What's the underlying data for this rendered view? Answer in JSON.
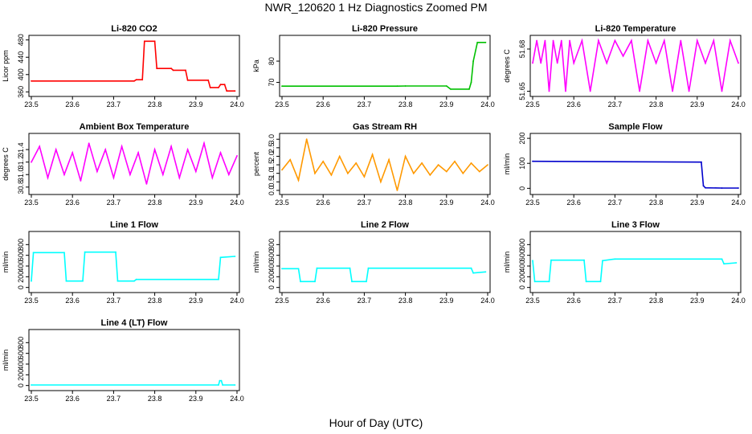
{
  "figure": {
    "title": "NWR_120620  1 Hz Diagnostics Zoomed PM",
    "xlabel": "Hour of Day (UTC)"
  },
  "chart_data": [
    {
      "type": "line",
      "title": "Li-820 CO2",
      "ylabel": "Licor ppm",
      "color": "#ff0000",
      "xlim": [
        23.5,
        24.0
      ],
      "ylim": [
        355,
        485
      ],
      "xticks": [
        "23.5",
        "23.6",
        "23.7",
        "23.8",
        "23.9",
        "24.0"
      ],
      "yticks": [
        "360",
        "400",
        "440",
        "480"
      ],
      "x": [
        23.5,
        23.75,
        23.755,
        23.77,
        23.775,
        23.8,
        23.805,
        23.84,
        23.845,
        23.875,
        23.88,
        23.93,
        23.935,
        23.955,
        23.96,
        23.97,
        23.975,
        23.995
      ],
      "y": [
        385,
        385,
        388,
        388,
        477,
        477,
        414,
        414,
        410,
        410,
        387,
        387,
        370,
        370,
        377,
        377,
        362,
        362
      ]
    },
    {
      "type": "line",
      "title": "Li-820 Pressure",
      "ylabel": "kPa",
      "color": "#00c000",
      "xlim": [
        23.5,
        24.0
      ],
      "ylim": [
        64.5,
        91
      ],
      "xticks": [
        "23.5",
        "23.6",
        "23.7",
        "23.8",
        "23.9",
        "24.0"
      ],
      "yticks": [
        "70",
        "80"
      ],
      "x": [
        23.5,
        23.78,
        23.8,
        23.9,
        23.91,
        23.955,
        23.96,
        23.965,
        23.975,
        23.995
      ],
      "y": [
        68.2,
        68.2,
        68.3,
        68.3,
        66.8,
        66.8,
        70,
        80,
        88.8,
        88.8
      ]
    },
    {
      "type": "line",
      "title": "Li-820 Temperature",
      "ylabel": "degrees C",
      "color": "#ff00ff",
      "xlim": [
        23.5,
        24.0
      ],
      "ylim": [
        51.648,
        51.688
      ],
      "xticks": [
        "23.5",
        "23.6",
        "23.7",
        "23.8",
        "23.9",
        "24.0"
      ],
      "yticks": [
        "51.65",
        "51.68"
      ],
      "x": [
        23.5,
        23.51,
        23.52,
        23.53,
        23.54,
        23.55,
        23.56,
        23.57,
        23.58,
        23.59,
        23.6,
        23.62,
        23.64,
        23.66,
        23.68,
        23.7,
        23.72,
        23.74,
        23.76,
        23.78,
        23.8,
        23.82,
        23.84,
        23.86,
        23.88,
        23.9,
        23.92,
        23.94,
        23.96,
        23.98,
        24.0
      ],
      "y": [
        51.67,
        51.686,
        51.67,
        51.686,
        51.65,
        51.686,
        51.67,
        51.686,
        51.65,
        51.686,
        51.67,
        51.686,
        51.65,
        51.686,
        51.67,
        51.686,
        51.675,
        51.686,
        51.65,
        51.686,
        51.67,
        51.686,
        51.65,
        51.686,
        51.65,
        51.686,
        51.67,
        51.686,
        51.65,
        51.686,
        51.67
      ]
    },
    {
      "type": "line",
      "title": "Ambient Box Temperature",
      "ylabel": "degrees C",
      "color": "#ff00ff",
      "xlim": [
        23.5,
        24.0
      ],
      "ylim": [
        30.72,
        31.62
      ],
      "xticks": [
        "23.5",
        "23.6",
        "23.7",
        "23.8",
        "23.9",
        "24.0"
      ],
      "yticks": [
        "30.8",
        "31.0",
        "31.2",
        "31.4"
      ],
      "x": [
        23.5,
        23.52,
        23.54,
        23.56,
        23.58,
        23.6,
        23.62,
        23.64,
        23.66,
        23.68,
        23.7,
        23.72,
        23.74,
        23.76,
        23.78,
        23.8,
        23.82,
        23.84,
        23.86,
        23.88,
        23.9,
        23.92,
        23.94,
        23.96,
        23.98,
        24.0
      ],
      "y": [
        31.2,
        31.45,
        30.95,
        31.4,
        31.0,
        31.35,
        30.9,
        31.5,
        31.05,
        31.4,
        30.95,
        31.45,
        31.0,
        31.35,
        30.85,
        31.4,
        31.0,
        31.45,
        30.95,
        31.4,
        31.05,
        31.5,
        30.95,
        31.35,
        31.0,
        31.3
      ]
    },
    {
      "type": "line",
      "title": "Gas Stream RH",
      "ylabel": "percent",
      "color": "#ff9900",
      "xlim": [
        23.5,
        24.0
      ],
      "ylim": [
        -0.1,
        3.2
      ],
      "xticks": [
        "23.5",
        "23.6",
        "23.7",
        "23.8",
        "23.9",
        "24.0"
      ],
      "yticks": [
        "0.0",
        "0.5",
        "1.0",
        "1.5",
        "2.0",
        "2.5",
        "3.0"
      ],
      "x": [
        23.5,
        23.52,
        23.54,
        23.56,
        23.58,
        23.6,
        23.62,
        23.64,
        23.66,
        23.68,
        23.7,
        23.72,
        23.74,
        23.76,
        23.78,
        23.8,
        23.82,
        23.84,
        23.86,
        23.88,
        23.9,
        23.92,
        23.94,
        23.96,
        23.98,
        24.0
      ],
      "y": [
        1.2,
        1.8,
        0.6,
        3.0,
        1.0,
        1.7,
        0.9,
        2.0,
        1.0,
        1.6,
        0.8,
        2.1,
        0.5,
        1.8,
        0.0,
        2.0,
        1.0,
        1.6,
        0.9,
        1.5,
        1.1,
        1.7,
        1.0,
        1.6,
        1.1,
        1.5
      ]
    },
    {
      "type": "line",
      "title": "Sample Flow",
      "ylabel": "ml/min",
      "color": "#0000cc",
      "xlim": [
        23.5,
        24.0
      ],
      "ylim": [
        -15,
        210
      ],
      "xticks": [
        "23.5",
        "23.6",
        "23.7",
        "23.8",
        "23.9",
        "24.0"
      ],
      "yticks": [
        "0",
        "100",
        "200"
      ],
      "x": [
        23.5,
        23.91,
        23.915,
        23.92,
        23.96,
        24.0
      ],
      "y": [
        108,
        105,
        10,
        2,
        1,
        1
      ]
    },
    {
      "type": "line",
      "title": "Line 1 Flow",
      "ylabel": "ml/min",
      "color": "#00ffff",
      "xlim": [
        23.5,
        24.0
      ],
      "ylim": [
        -50,
        1000
      ],
      "xticks": [
        "23.5",
        "23.6",
        "23.7",
        "23.8",
        "23.9",
        "24.0"
      ],
      "yticks": [
        "0",
        "200",
        "400",
        "600",
        "800"
      ],
      "x": [
        23.5,
        23.505,
        23.58,
        23.585,
        23.625,
        23.63,
        23.705,
        23.71,
        23.75,
        23.755,
        23.955,
        23.96,
        23.995
      ],
      "y": [
        120,
        650,
        650,
        120,
        120,
        660,
        660,
        120,
        120,
        150,
        150,
        560,
        580
      ]
    },
    {
      "type": "line",
      "title": "Line 2 Flow",
      "ylabel": "ml/min",
      "color": "#00ffff",
      "xlim": [
        23.5,
        24.0
      ],
      "ylim": [
        -50,
        1000
      ],
      "xticks": [
        "23.5",
        "23.6",
        "23.7",
        "23.8",
        "23.9",
        "24.0"
      ],
      "yticks": [
        "0",
        "200",
        "400",
        "600",
        "800"
      ],
      "x": [
        23.5,
        23.54,
        23.545,
        23.58,
        23.585,
        23.665,
        23.67,
        23.705,
        23.71,
        23.96,
        23.965,
        23.995
      ],
      "y": [
        350,
        350,
        110,
        110,
        360,
        360,
        110,
        110,
        360,
        360,
        270,
        290
      ]
    },
    {
      "type": "line",
      "title": "Line 3 Flow",
      "ylabel": "ml/min",
      "color": "#00ffff",
      "xlim": [
        23.5,
        24.0
      ],
      "ylim": [
        -50,
        1000
      ],
      "xticks": [
        "23.5",
        "23.6",
        "23.7",
        "23.8",
        "23.9",
        "24.0"
      ],
      "yticks": [
        "0",
        "200",
        "400",
        "600",
        "800"
      ],
      "x": [
        23.5,
        23.505,
        23.54,
        23.545,
        23.625,
        23.63,
        23.665,
        23.67,
        23.7,
        23.96,
        23.965,
        23.995
      ],
      "y": [
        500,
        110,
        110,
        510,
        510,
        110,
        110,
        500,
        530,
        530,
        440,
        460
      ]
    },
    {
      "type": "line",
      "title": "Line 4 (LT) Flow",
      "ylabel": "ml/min",
      "color": "#00ffff",
      "xlim": [
        23.5,
        24.0
      ],
      "ylim": [
        -50,
        1000
      ],
      "xticks": [
        "23.5",
        "23.6",
        "23.7",
        "23.8",
        "23.9",
        "24.0"
      ],
      "yticks": [
        "0",
        "200",
        "400",
        "600",
        "800"
      ],
      "x": [
        23.5,
        23.955,
        23.958,
        23.962,
        23.965,
        23.995
      ],
      "y": [
        10,
        10,
        90,
        90,
        10,
        10
      ]
    }
  ]
}
